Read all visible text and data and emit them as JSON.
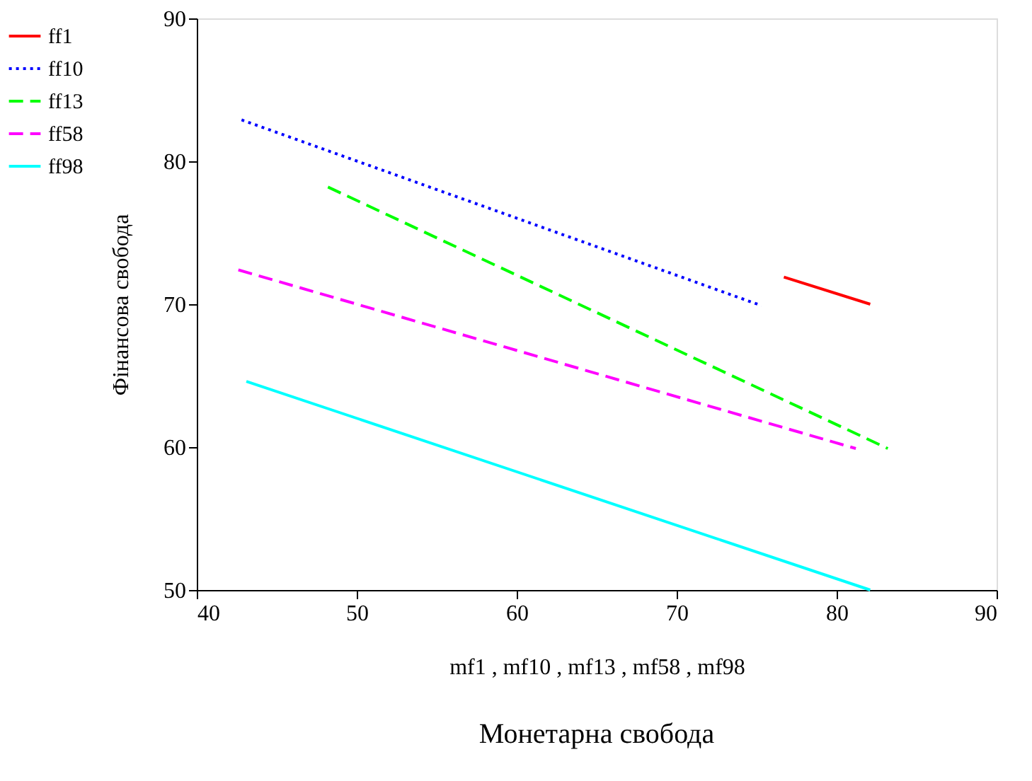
{
  "chart_data": {
    "type": "line",
    "xlabel": "mf1 , mf10 , mf13 , mf58 , mf98",
    "ylabel": "Фінансова свобода",
    "annotations": [
      "Монетарна свобода"
    ],
    "xlim": [
      40,
      90
    ],
    "xticks": [
      40,
      50,
      60,
      70,
      80,
      90
    ],
    "ylim": [
      50,
      90
    ],
    "yticks": [
      50,
      60,
      70,
      80,
      90
    ],
    "grid": false,
    "legend": "left",
    "marker": "none",
    "series": [
      {
        "name": "ff1",
        "color": "#ff0000",
        "line_style": "solid",
        "x": [
          76.7,
          82.1
        ],
        "values": [
          71.9,
          70.0
        ]
      },
      {
        "name": "ff10",
        "color": "#0000ff",
        "line_style": "dotted",
        "x": [
          42.8,
          75.3
        ],
        "values": [
          82.9,
          69.9
        ]
      },
      {
        "name": "ff13",
        "color": "#00ff00",
        "line_style": "dashed",
        "x": [
          48.2,
          83.2
        ],
        "values": [
          78.2,
          59.9
        ]
      },
      {
        "name": "ff58",
        "color": "#ff00ff",
        "line_style": "dashed",
        "x": [
          42.6,
          81.2
        ],
        "values": [
          72.4,
          59.9
        ]
      },
      {
        "name": "ff98",
        "color": "#00ffff",
        "line_style": "solid",
        "x": [
          43.1,
          82.1
        ],
        "values": [
          64.6,
          50.0
        ]
      }
    ]
  }
}
